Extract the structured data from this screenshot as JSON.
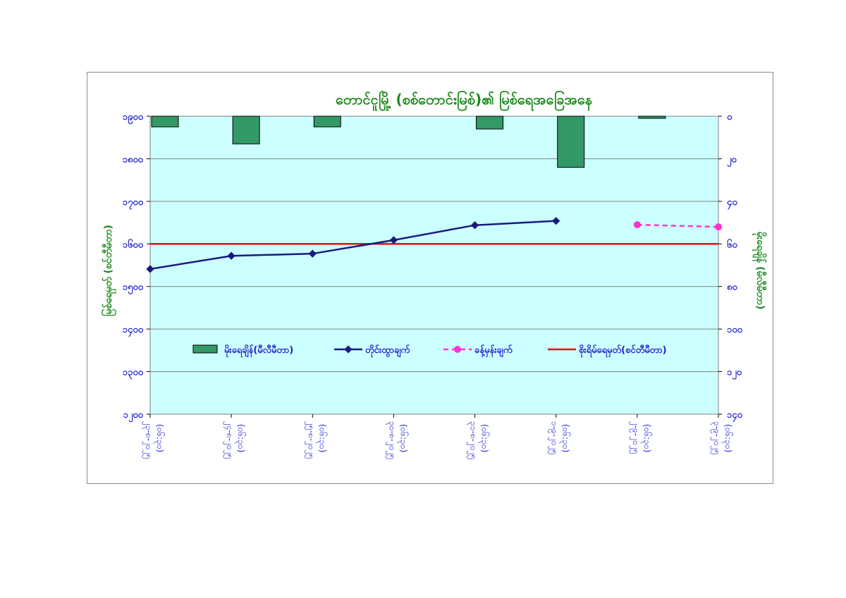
{
  "chart_data": {
    "type": "bar+line",
    "title": "တောင်ငူမြို့ (စစ်တောင်းမြစ်)၏ မြစ်ရေအခြေအနေ",
    "categories": [
      [
        "၂၃-၈-၂၀၂၅",
        "(၀၆:၃၀)"
      ],
      [
        "၂၄-၈-၂၀၂၅",
        "(၀၆:၃၀)"
      ],
      [
        "၂၅-၈-၂၀၂၅",
        "(၀၆:၃၀)"
      ],
      [
        "၃၀-၈-၂၀၂၅",
        "(၀၆:၃၀)"
      ],
      [
        "၃၁-၈-၂၀၂၅",
        "(၀၆:၃၀)"
      ],
      [
        "၁-၉-၂၀၂၅",
        "(၀၆:၃၀)"
      ],
      [
        "၂-၉-၂၀၂၅",
        "(၀၆:၃၀)"
      ],
      [
        "၃-၉-၂၀၂၅",
        "(၀၆:၃၀)"
      ]
    ],
    "ylabel_left": "မြစ်ရေမှတ် (စင်တီမီတာ)",
    "ylabel_right": "မိုးရေချိန် (မီလီမီတာ)",
    "left_axis": {
      "min": 1200,
      "max": 1900,
      "step": 100,
      "tick_labels": [
        "၁၉၀၀",
        "၁၈၀၀",
        "၁၇၀၀",
        "၁၆၀၀",
        "၁၅၀၀",
        "၁၄၀၀",
        "၁၃၀၀",
        "၁၂၀၀"
      ]
    },
    "right_axis": {
      "min": 0,
      "max": 140,
      "step": 20,
      "inverted": true,
      "tick_labels": [
        "၀",
        "၂၀",
        "၄၀",
        "၆၀",
        "၈၀",
        "၁၀၀",
        "၁၂၀",
        "၁၄၀"
      ]
    },
    "series": [
      {
        "name": "မိုးရေချိန်(မီလီမီတာ)",
        "kind": "bar",
        "axis": "right",
        "color": "#339966",
        "values": [
          5,
          13,
          5,
          null,
          6,
          24,
          1,
          null
        ]
      },
      {
        "name": "တိုင်းထွာချက်",
        "kind": "line",
        "axis": "left",
        "color": "#1a1a80",
        "values": [
          1541,
          1572,
          1577,
          1609,
          1644,
          1654,
          null,
          null
        ]
      },
      {
        "name": "ခန့်မှန်းချက်",
        "kind": "dashed-line",
        "axis": "left",
        "color": "#ff33cc",
        "values": [
          null,
          null,
          null,
          null,
          null,
          null,
          1645,
          1640
        ]
      },
      {
        "name": "စိုးရိမ်ရေမှတ်(စင်တီမီတာ)",
        "kind": "hline",
        "axis": "left",
        "color": "#e01010",
        "value": 1600
      }
    ],
    "plot_background": "#ccffff",
    "grid": true,
    "legend_position": "inside-bottom"
  }
}
